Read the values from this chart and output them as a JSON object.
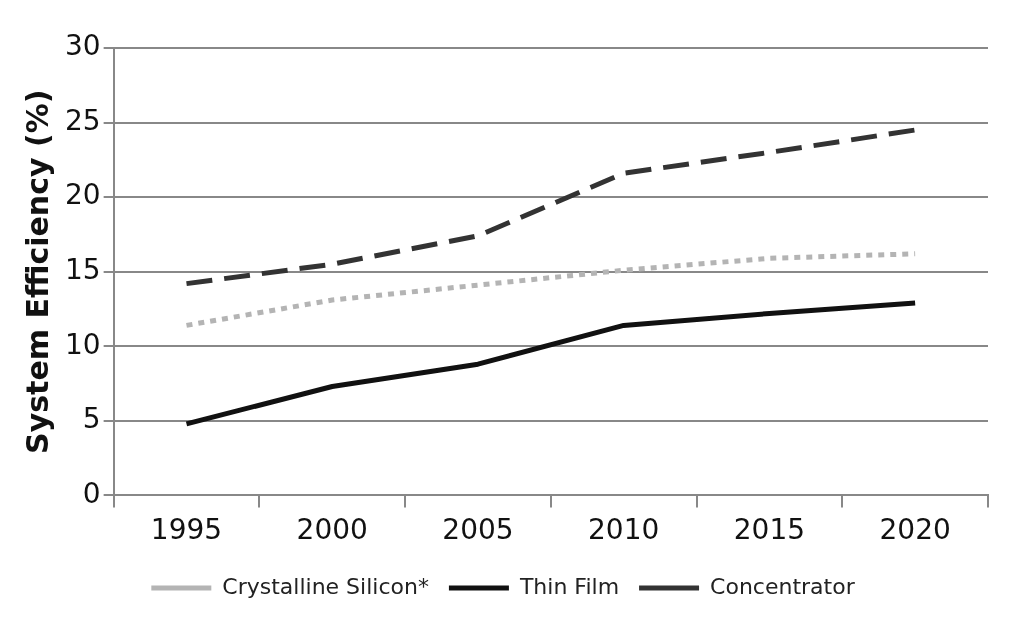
{
  "chart_data": {
    "type": "line",
    "ylabel": "System Efficiency (%)",
    "categories": [
      "1995",
      "2000",
      "2005",
      "2010",
      "2015",
      "2020"
    ],
    "series": [
      {
        "name": "Crystalline Silicon*",
        "color": "#b4b4b4",
        "line_style": "dotted",
        "values": [
          11.4,
          13.1,
          14.1,
          15.1,
          15.9,
          16.2
        ]
      },
      {
        "name": "Thin Film",
        "color": "#111111",
        "line_style": "solid",
        "values": [
          4.8,
          7.3,
          8.8,
          11.4,
          12.2,
          12.9
        ]
      },
      {
        "name": "Concentrator",
        "color": "#333333",
        "line_style": "dashed",
        "values": [
          14.2,
          15.5,
          17.4,
          21.6,
          23.0,
          24.5
        ]
      }
    ],
    "ylim": [
      0,
      30
    ],
    "yticks": [
      0,
      5,
      10,
      15,
      20,
      25,
      30
    ],
    "grid": "y",
    "legend": "bottom",
    "marker": "none"
  }
}
